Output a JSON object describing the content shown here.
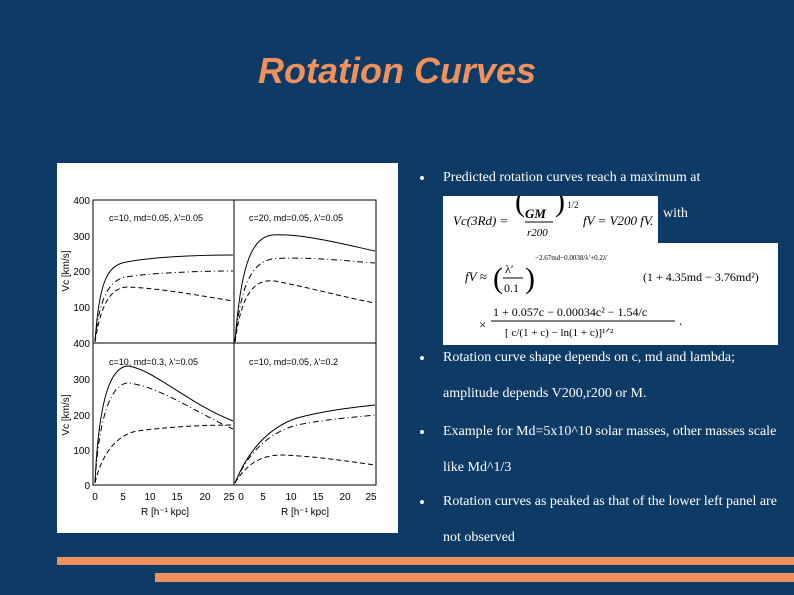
{
  "slide": {
    "title": "Rotation Curves",
    "with_label": "with"
  },
  "bullets": [
    {
      "text": "Predicted rotation curves reach a maximum at"
    },
    {
      "text": "Rotation curve shape depends on  c, md and lambda; amplitude depends V200,r200 or M."
    },
    {
      "text": "Example for Md=5x10^10 solar masses, other masses scale like Md^1/3"
    },
    {
      "text": "Rotation curves as peaked as that of the lower left panel are not observed"
    }
  ],
  "equations": {
    "eq1": {
      "lhs": "Vc(3Rd) =",
      "GM": "GM",
      "r200": "r200",
      "exponent": "1/2",
      "rhs": "fV = V200 fV."
    },
    "eq2": {
      "lhs": "fV ≈",
      "lambda_num": "λ′",
      "lambda_den": "0.1",
      "lambda_exp": "−2.67md−0.0038/λ′+0.2λ′",
      "factor": "(1 + 4.35md − 3.76md²)",
      "num": "1 + 0.057c − 0.00034c² − 1.54/c",
      "times": "×",
      "den": "[ c/(1 + c) − ln(1 + c)]¹ᐟ²",
      "period": "."
    }
  },
  "figure": {
    "panels": [
      {
        "label": "c=10, md=0.05, λ'=0.05"
      },
      {
        "label": "c=20, md=0.05, λ'=0.05"
      },
      {
        "label": "c=10, md=0.3, λ'=0.05"
      },
      {
        "label": "c=10, md=0.05, λ'=0.2"
      }
    ],
    "ylabel": "Vc [km/s]",
    "xlabel": "R [h⁻¹ kpc]",
    "y_ticks_top": [
      "400",
      "300",
      "200",
      "100"
    ],
    "y_ticks_bottom": [
      "400",
      "300",
      "200",
      "100",
      "0"
    ],
    "x_ticks_left": [
      "0",
      "5",
      "10",
      "15",
      "20",
      "25"
    ],
    "x_ticks_right": [
      "0",
      "5",
      "10",
      "15",
      "20",
      "25"
    ],
    "line_colors": {
      "curve": "#000000"
    }
  },
  "colors": {
    "background": "#0e3a66",
    "accent": "#f0915b",
    "text": "#ffffff"
  }
}
